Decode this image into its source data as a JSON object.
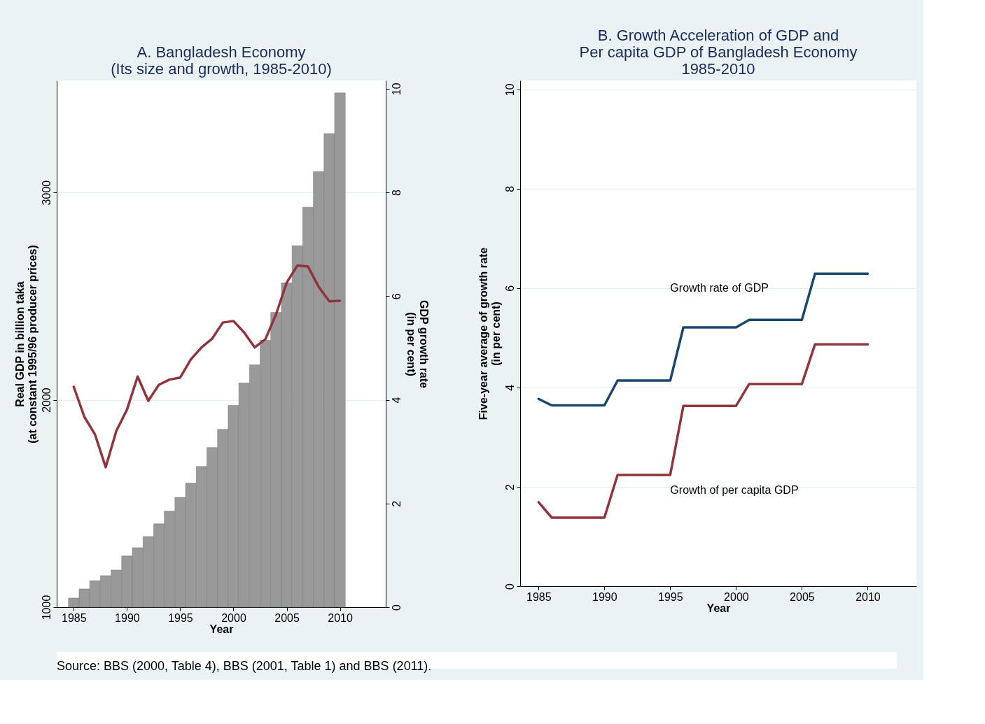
{
  "chart_data": [
    {
      "type": "bar",
      "title": "A. Bangladesh Economy\n(Its size and growth, 1985-2010)",
      "xlabel": "Year",
      "ylabel": "Real GDP in billion taka\n(at constant 1995/96 producer prices)",
      "y2label": "GDP growth rate\n(in per cent)",
      "x": [
        1985,
        1986,
        1987,
        1988,
        1989,
        1990,
        1991,
        1992,
        1993,
        1994,
        1995,
        1996,
        1997,
        1998,
        1999,
        2000,
        2001,
        2002,
        2003,
        2004,
        2005,
        2006,
        2007,
        2008,
        2009,
        2010
      ],
      "series": [
        {
          "type": "bar",
          "color": "#999999",
          "values": [
            1044,
            1088,
            1128,
            1152,
            1179,
            1247,
            1287,
            1341,
            1402,
            1463,
            1530,
            1598,
            1679,
            1770,
            1858,
            1973,
            2081,
            2169,
            2287,
            2422,
            2564,
            2743,
            2929,
            3101,
            3284,
            3480
          ]
        },
        {
          "type": "line",
          "axis": "y2",
          "color": "#90353b",
          "values": [
            4.25,
            3.67,
            3.33,
            2.7,
            3.4,
            3.81,
            4.45,
            3.98,
            4.29,
            4.39,
            4.43,
            4.78,
            5.01,
            5.18,
            5.49,
            5.52,
            5.3,
            5.01,
            5.17,
            5.65,
            6.26,
            6.59,
            6.57,
            6.18,
            5.9,
            5.91
          ]
        }
      ],
      "xlim": [
        1983.4,
        2014.3
      ],
      "xticks": [
        1985,
        1990,
        1995,
        2000,
        2005,
        2010
      ],
      "ylim": [
        1000,
        3540
      ],
      "yticks": [
        1000,
        2000,
        3000
      ],
      "y2lim": [
        0,
        10.16
      ],
      "y2ticks": [
        0,
        2,
        4,
        6,
        8,
        10
      ],
      "grid": "y",
      "legend": false,
      "annotations": [
        "Source: BBS (2000, Table 4), BBS (2001, Table 1) and BBS (2011)."
      ]
    },
    {
      "type": "line",
      "title": "B. Growth Acceleration of GDP and\nPer capita GDP of Bangladesh Economy\n1985-2010",
      "xlabel": "Year",
      "ylabel": "Five-year average of growth rate\n(in per cent)",
      "x": [
        1985,
        1986,
        1987,
        1988,
        1989,
        1990,
        1991,
        1992,
        1993,
        1994,
        1995,
        1996,
        1997,
        1998,
        1999,
        2000,
        2001,
        2002,
        2003,
        2004,
        2005,
        2006,
        2007,
        2008,
        2009,
        2010
      ],
      "series": [
        {
          "name": "Growth rate of GDP",
          "color": "#1a476f",
          "values": [
            3.77,
            3.64,
            3.64,
            3.64,
            3.64,
            3.64,
            4.14,
            4.14,
            4.14,
            4.14,
            4.14,
            5.21,
            5.21,
            5.21,
            5.21,
            5.21,
            5.36,
            5.36,
            5.36,
            5.36,
            5.36,
            6.29,
            6.29,
            6.29,
            6.29,
            6.29
          ]
        },
        {
          "name": "Growth of per capita GDP",
          "color": "#90353b",
          "values": [
            1.69,
            1.38,
            1.38,
            1.38,
            1.38,
            1.38,
            2.24,
            2.24,
            2.24,
            2.24,
            2.24,
            3.63,
            3.63,
            3.63,
            3.63,
            3.63,
            4.07,
            4.07,
            4.07,
            4.07,
            4.07,
            4.87,
            4.87,
            4.87,
            4.87,
            4.87
          ]
        }
      ],
      "xlim": [
        1983.6,
        2013.7
      ],
      "xticks": [
        1985,
        1990,
        1995,
        2000,
        2005,
        2010
      ],
      "ylim": [
        0,
        10.18
      ],
      "yticks": [
        0,
        2,
        4,
        6,
        8,
        10
      ],
      "grid": "y",
      "legend": false
    }
  ]
}
